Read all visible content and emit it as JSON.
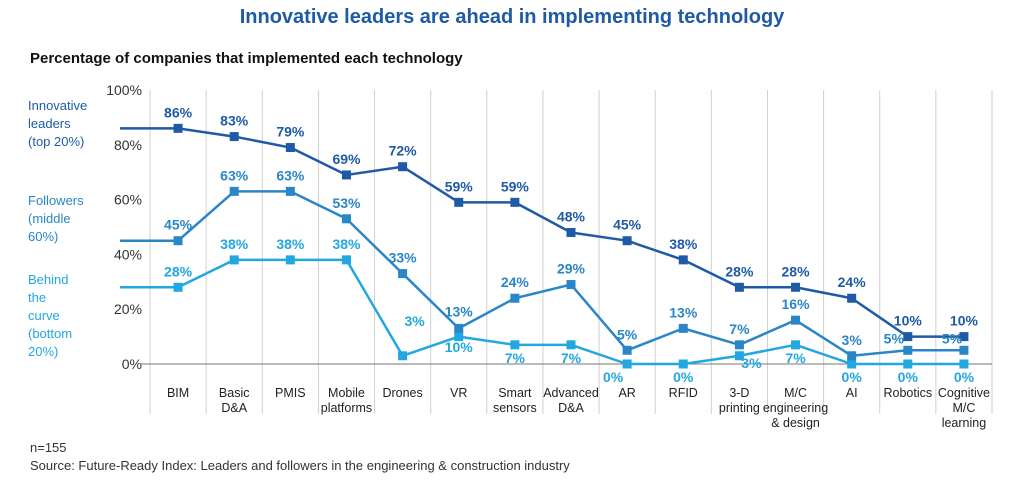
{
  "chart_data": {
    "type": "line",
    "title": "Innovative leaders are ahead in implementing technology",
    "subtitle": "Percentage of companies that implemented each technology",
    "categories": [
      "BIM",
      "Basic D&A",
      "PMIS",
      "Mobile platforms",
      "Drones",
      "VR",
      "Smart sensors",
      "Advanced D&A",
      "AR",
      "RFID",
      "3-D printing",
      "M/C engineering & design",
      "AI",
      "Robotics",
      "Cognitive M/C learning"
    ],
    "category_lines": [
      [
        "BIM"
      ],
      [
        "Basic",
        "D&A"
      ],
      [
        "PMIS"
      ],
      [
        "Mobile",
        "platforms"
      ],
      [
        "Drones"
      ],
      [
        "VR"
      ],
      [
        "Smart",
        "sensors"
      ],
      [
        "Advanced",
        "D&A"
      ],
      [
        "AR"
      ],
      [
        "RFID"
      ],
      [
        "3-D",
        "printing"
      ],
      [
        "M/C",
        "engineering",
        "& design"
      ],
      [
        "AI"
      ],
      [
        "Robotics"
      ],
      [
        "Cognitive",
        "M/C",
        "learning"
      ]
    ],
    "series": [
      {
        "name": "Innovative leaders (top 20%)",
        "name_lines": [
          "Innovative",
          "leaders",
          "(top 20%)"
        ],
        "color": "#1f5aa6",
        "values": [
          86,
          83,
          79,
          69,
          72,
          59,
          59,
          48,
          45,
          38,
          28,
          28,
          24,
          10,
          10
        ],
        "labels": [
          "86%",
          "83%",
          "79%",
          "69%",
          "72%",
          "59%",
          "59%",
          "48%",
          "45%",
          "38%",
          "28%",
          "28%",
          "24%",
          "10%",
          "10%"
        ]
      },
      {
        "name": "Followers (middle 60%)",
        "name_lines": [
          "Followers",
          "(middle",
          "60%)"
        ],
        "color": "#2a86c7",
        "values": [
          45,
          63,
          63,
          53,
          33,
          13,
          24,
          29,
          5,
          13,
          7,
          16,
          3,
          5,
          5
        ],
        "labels": [
          "45%",
          "63%",
          "63%",
          "53%",
          "33%",
          "13%",
          "24%",
          "29%",
          "5%",
          "13%",
          "7%",
          "16%",
          "3%",
          "5%",
          "5%"
        ]
      },
      {
        "name": "Behind the curve (bottom 20%)",
        "name_lines": [
          "Behind",
          "the",
          "curve",
          "(bottom",
          "20%)"
        ],
        "color": "#22a7e0",
        "values": [
          28,
          38,
          38,
          38,
          3,
          10,
          7,
          7,
          0,
          0,
          3,
          7,
          0,
          0,
          0
        ],
        "labels": [
          "28%",
          "38%",
          "38%",
          "38%",
          "3%",
          "10%",
          "7%",
          "7%",
          "0%",
          "0%",
          "3%",
          "7%",
          "0%",
          "0%",
          "0%"
        ]
      }
    ],
    "yticks": [
      "0%",
      "20%",
      "40%",
      "60%",
      "80%",
      "100%"
    ],
    "ylim": [
      0,
      100
    ],
    "grid": "vertical category separators",
    "legend": "left"
  },
  "footnote": {
    "n": "n=155",
    "source": "Source: Future-Ready Index: Leaders and followers in the engineering & construction industry"
  }
}
